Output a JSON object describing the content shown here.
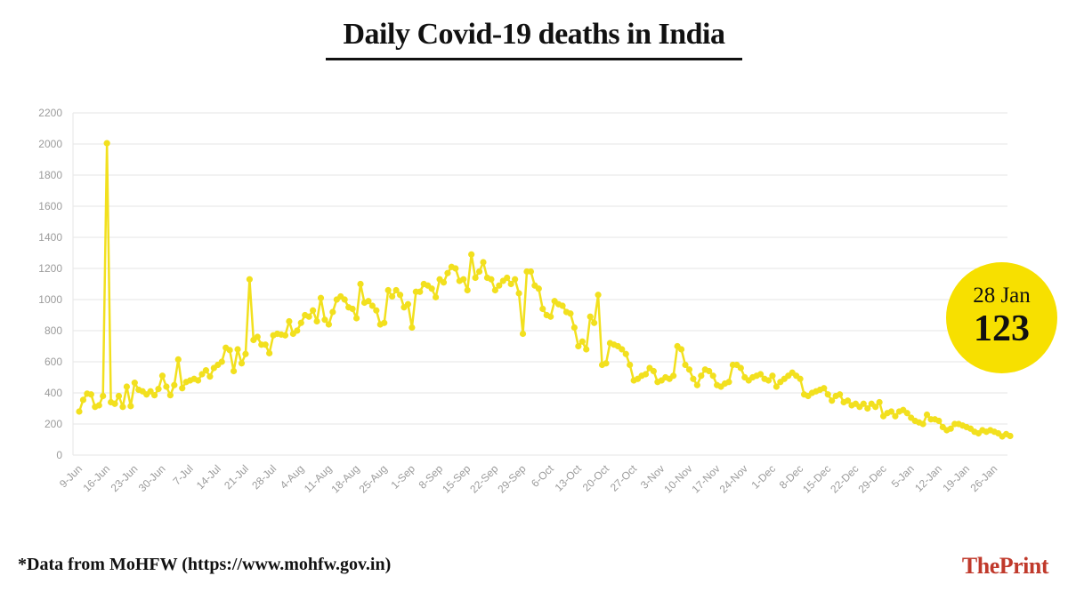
{
  "title": "Daily Covid-19 deaths in India",
  "footnote": "*Data from MoHFW (https://www.mohfw.gov.in)",
  "brand": {
    "part1": "The",
    "part2": "Print"
  },
  "highlight": {
    "date": "28 Jan",
    "value": "123"
  },
  "colors": {
    "line": "#f2e01e",
    "badge": "#f7e000",
    "grid": "#e6e6e6",
    "axis_text": "#9b9b9b",
    "brand": "#c0392b"
  },
  "chart_data": {
    "type": "line",
    "title": "Daily Covid-19 deaths in India",
    "xlabel": "",
    "ylabel": "",
    "ylim": [
      0,
      2200
    ],
    "yticks": [
      0,
      200,
      400,
      600,
      800,
      1000,
      1200,
      1400,
      1600,
      1800,
      2000,
      2200
    ],
    "grid": true,
    "x_start": "9-Jun",
    "x_end": "28-Jan",
    "xtick_labels": [
      "9-Jun",
      "16-Jun",
      "23-Jun",
      "30-Jun",
      "7-Jul",
      "14-Jul",
      "21-Jul",
      "28-Jul",
      "4-Aug",
      "11-Aug",
      "18-Aug",
      "25-Aug",
      "1-Sep",
      "8-Sep",
      "15-Sep",
      "22-Sep",
      "29-Sep",
      "6-Oct",
      "13-Oct",
      "20-Oct",
      "27-Oct",
      "3-Nov",
      "10-Nov",
      "17-Nov",
      "24-Nov",
      "1-Dec",
      "8-Dec",
      "15-Dec",
      "22-Dec",
      "29-Dec",
      "5-Jan",
      "12-Jan",
      "19-Jan",
      "26-Jan"
    ],
    "series": [
      {
        "values": [
          280,
          355,
          395,
          390,
          310,
          320,
          380,
          2005,
          340,
          330,
          380,
          310,
          440,
          315,
          465,
          420,
          410,
          390,
          410,
          385,
          425,
          510,
          440,
          385,
          450,
          615,
          430,
          470,
          480,
          490,
          480,
          520,
          545,
          505,
          560,
          580,
          600,
          690,
          675,
          540,
          680,
          590,
          650,
          1130,
          740,
          760,
          710,
          710,
          655,
          770,
          780,
          775,
          770,
          860,
          780,
          800,
          850,
          900,
          890,
          930,
          860,
          1010,
          870,
          840,
          920,
          1000,
          1020,
          1000,
          950,
          940,
          880,
          1100,
          980,
          990,
          960,
          930,
          840,
          850,
          1060,
          1020,
          1060,
          1030,
          950,
          970,
          820,
          1050,
          1050,
          1100,
          1090,
          1070,
          1015,
          1130,
          1110,
          1170,
          1210,
          1200,
          1120,
          1130,
          1060,
          1290,
          1140,
          1180,
          1240,
          1140,
          1130,
          1060,
          1090,
          1120,
          1140,
          1100,
          1130,
          1040,
          780,
          1180,
          1180,
          1090,
          1070,
          940,
          900,
          890,
          990,
          970,
          960,
          920,
          910,
          820,
          700,
          730,
          680,
          890,
          850,
          1030,
          580,
          590,
          720,
          710,
          700,
          680,
          650,
          580,
          480,
          490,
          510,
          520,
          560,
          540,
          470,
          480,
          500,
          490,
          510,
          700,
          680,
          580,
          550,
          490,
          450,
          510,
          550,
          540,
          510,
          450,
          440,
          460,
          470,
          580,
          580,
          560,
          500,
          480,
          500,
          510,
          520,
          490,
          480,
          510,
          440,
          470,
          490,
          510,
          530,
          510,
          490,
          390,
          380,
          400,
          410,
          420,
          430,
          390,
          350,
          380,
          390,
          340,
          350,
          320,
          330,
          310,
          330,
          300,
          330,
          310,
          340,
          250,
          270,
          280,
          250,
          280,
          290,
          270,
          240,
          220,
          210,
          200,
          260,
          230,
          230,
          220,
          180,
          160,
          170,
          200,
          200,
          190,
          180,
          170,
          150,
          140,
          160,
          150,
          160,
          150,
          140,
          120,
          135,
          123
        ]
      }
    ]
  }
}
